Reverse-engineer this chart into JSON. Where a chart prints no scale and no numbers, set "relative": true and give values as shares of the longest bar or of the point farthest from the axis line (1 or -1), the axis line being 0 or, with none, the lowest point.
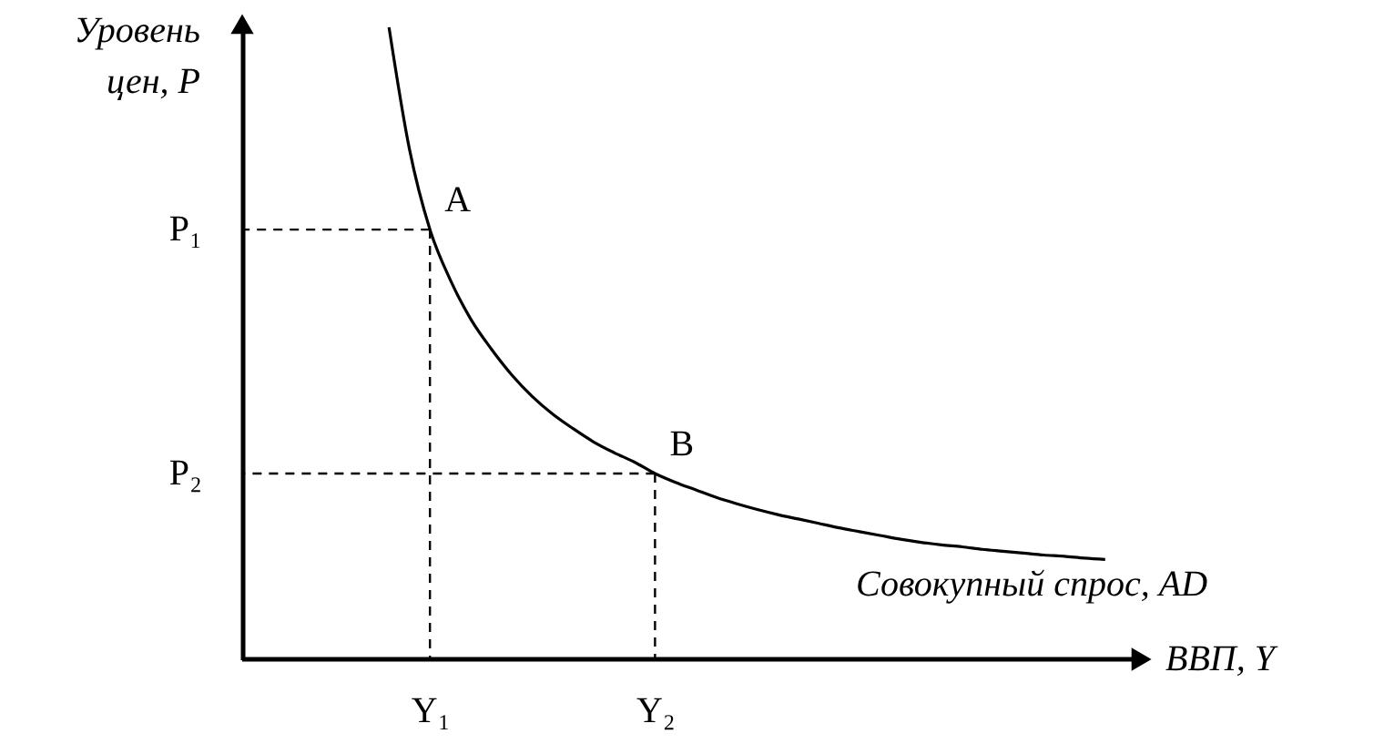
{
  "chart_data": {
    "type": "line",
    "relative": true,
    "xlabel": "ВВП, Y",
    "ylabel": "Уровень\nцен, P",
    "categories": [
      null,
      null,
      "Y₁",
      null,
      null,
      null,
      null,
      null,
      null,
      null,
      null,
      null,
      null,
      "Y₂",
      null,
      null,
      null,
      null,
      null,
      null,
      null,
      null,
      null,
      null,
      null,
      null,
      null,
      null,
      null,
      null,
      null,
      null,
      null,
      null,
      null,
      null
    ],
    "series": [
      {
        "name": "Совокупный спрос, AD",
        "color": "#000000",
        "values": [
          1.0,
          0.807,
          0.68,
          0.6,
          0.538,
          0.491,
          0.45,
          0.416,
          0.388,
          0.365,
          0.344,
          0.327,
          0.312,
          0.294,
          0.28,
          0.268,
          0.256,
          0.246,
          0.237,
          0.229,
          0.222,
          0.215,
          0.208,
          0.202,
          0.196,
          0.19,
          0.185,
          0.181,
          0.178,
          0.174,
          0.171,
          0.168,
          0.165,
          0.163,
          0.16,
          0.158
        ]
      }
    ],
    "annotations": [
      {
        "text": "A",
        "x": "Y₁",
        "y": 0.68
      },
      {
        "text": "B",
        "x": "Y₂",
        "y": 0.294
      }
    ],
    "ref_lines": [
      {
        "axis": "y",
        "value": 0.68,
        "label": "P₁",
        "line_style": "dashed"
      },
      {
        "axis": "y",
        "value": 0.294,
        "label": "P₂",
        "line_style": "dashed"
      }
    ],
    "marker": "none",
    "line_style": "solid"
  }
}
